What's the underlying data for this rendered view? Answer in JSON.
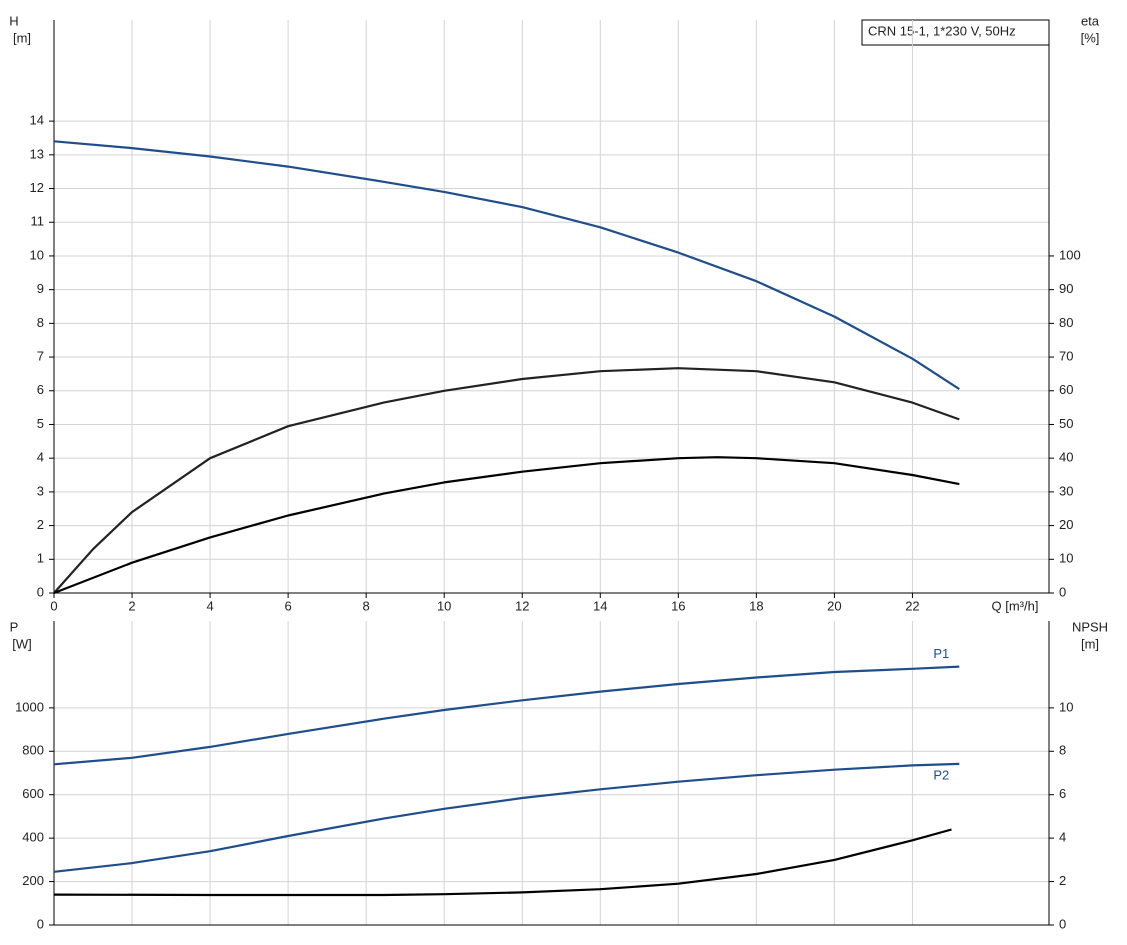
{
  "chart_data": [
    {
      "type": "line",
      "title": "CRN 15-1, 1*230 V, 50Hz",
      "ylabel": "H",
      "yunit": "[m]",
      "y2label": "eta",
      "y2unit": "[%]",
      "xlabel": "Q [m³/h]",
      "xlim": [
        0,
        25.5
      ],
      "xticks": [
        0,
        2,
        4,
        6,
        8,
        10,
        12,
        14,
        16,
        18,
        20,
        22
      ],
      "ylim": [
        0,
        17
      ],
      "yticks": [
        0,
        1,
        2,
        3,
        4,
        5,
        6,
        7,
        8,
        9,
        10,
        11,
        12,
        13,
        14
      ],
      "y2lim": [
        0,
        170
      ],
      "y2ticks": [
        0,
        10,
        20,
        30,
        40,
        50,
        60,
        70,
        80,
        90,
        100
      ],
      "grid": true,
      "series": [
        {
          "color": "#1f4e8c",
          "x": [
            0,
            2,
            4,
            6,
            8.45,
            10,
            12,
            14,
            16,
            18,
            20,
            22,
            23.2
          ],
          "values": [
            13.4,
            13.2,
            12.95,
            12.65,
            12.2,
            11.9,
            11.45,
            10.85,
            10.1,
            9.25,
            8.2,
            6.95,
            6.05
          ]
        },
        {
          "color": "#222222",
          "axis": "y2",
          "x": [
            0,
            1,
            2,
            4,
            6,
            8.45,
            10,
            12,
            14,
            16,
            18,
            20,
            22,
            23.2
          ],
          "values": [
            0,
            13,
            24,
            40,
            49.5,
            56.5,
            60,
            63.5,
            65.8,
            66.7,
            65.8,
            62.5,
            56.5,
            51.5
          ]
        },
        {
          "color": "#000000",
          "axis": "y2",
          "x": [
            0,
            2,
            4,
            6,
            8.45,
            10,
            12,
            14,
            16,
            17,
            18,
            20,
            22,
            23.2
          ],
          "values": [
            0,
            9,
            16.5,
            23,
            29.5,
            32.8,
            36,
            38.5,
            40,
            40.3,
            40,
            38.5,
            35,
            32.3
          ]
        }
      ]
    },
    {
      "type": "line",
      "ylabel": "P",
      "yunit": "[W]",
      "y2label": "NPSH",
      "y2unit": "[m]",
      "xlim": [
        0,
        25.5
      ],
      "ylim": [
        0,
        1400
      ],
      "yticks": [
        0,
        200,
        400,
        600,
        800,
        1000
      ],
      "y2lim": [
        0,
        14
      ],
      "y2ticks": [
        0,
        2,
        4,
        6,
        8,
        10
      ],
      "grid": true,
      "series": [
        {
          "name": "P1",
          "color": "#1f4e8c",
          "x": [
            0,
            2,
            4,
            6,
            8.45,
            10,
            12,
            14,
            16,
            18,
            20,
            22,
            23.2
          ],
          "values": [
            740,
            770,
            820,
            880,
            950,
            990,
            1035,
            1075,
            1110,
            1140,
            1165,
            1180,
            1190
          ]
        },
        {
          "name": "P2",
          "color": "#1f4e8c",
          "x": [
            0,
            2,
            4,
            6,
            8.45,
            10,
            12,
            14,
            16,
            18,
            20,
            22,
            23.2
          ],
          "values": [
            245,
            285,
            340,
            410,
            490,
            535,
            585,
            625,
            660,
            690,
            715,
            735,
            742
          ]
        },
        {
          "color": "#000000",
          "axis": "y2",
          "x": [
            0,
            4,
            8.45,
            10,
            12,
            14,
            16,
            18,
            20,
            22,
            23
          ],
          "values": [
            1.4,
            1.38,
            1.38,
            1.42,
            1.5,
            1.65,
            1.9,
            2.35,
            3.0,
            3.9,
            4.4
          ]
        }
      ]
    }
  ]
}
